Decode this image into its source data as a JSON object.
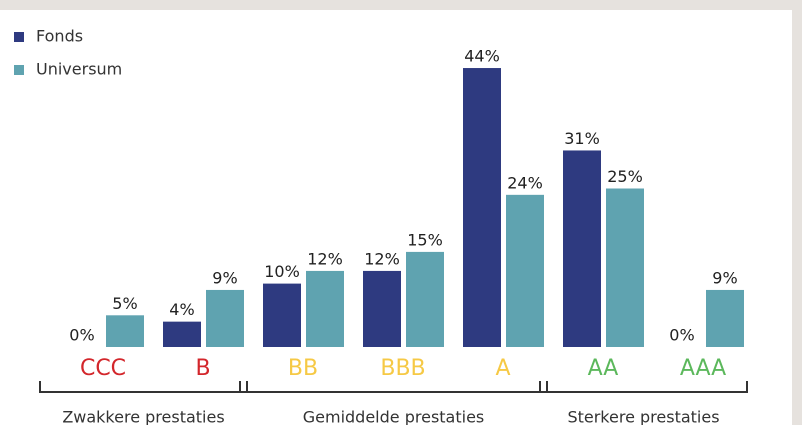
{
  "chart_data": {
    "type": "bar",
    "categories": [
      "CCC",
      "B",
      "BB",
      "BBB",
      "A",
      "AA",
      "AAA"
    ],
    "category_colors": [
      "#d3262b",
      "#d3262b",
      "#f6c945",
      "#f6c945",
      "#f6c945",
      "#5cb85c",
      "#5cb85c"
    ],
    "series": [
      {
        "name": "Fonds",
        "color": "#2e3a80",
        "values": [
          0,
          4,
          10,
          12,
          44,
          31,
          0
        ],
        "value_labels": [
          "0%",
          "4%",
          "10%",
          "12%",
          "44%",
          "31%",
          "0%"
        ]
      },
      {
        "name": "Universum",
        "color": "#5fa3b0",
        "values": [
          5,
          9,
          12,
          15,
          24,
          25,
          9
        ],
        "value_labels": [
          "5%",
          "9%",
          "12%",
          "15%",
          "24%",
          "25%",
          "9%"
        ]
      }
    ],
    "groups": [
      {
        "label": "Zwakkere prestaties",
        "categories": [
          "CCC",
          "B"
        ]
      },
      {
        "label": "Gemiddelde prestaties",
        "categories": [
          "BB",
          "BBB",
          "A"
        ]
      },
      {
        "label": "Sterkere prestaties",
        "categories": [
          "AA",
          "AAA"
        ]
      }
    ],
    "legend": "top-left"
  }
}
